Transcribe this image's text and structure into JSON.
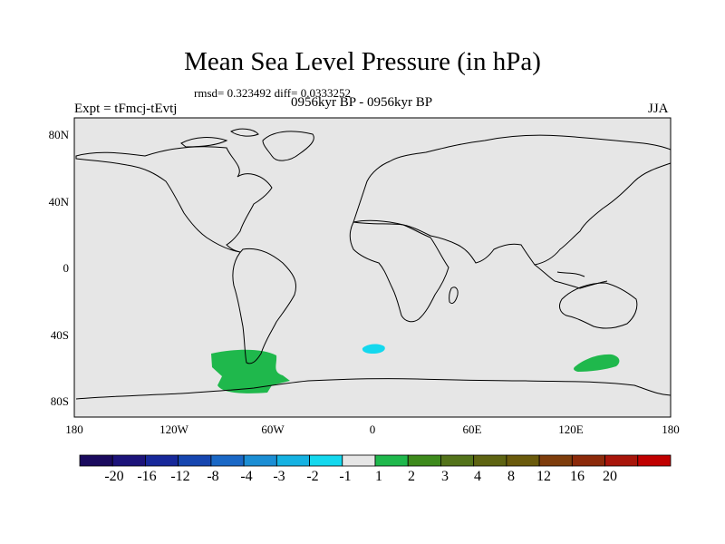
{
  "title": "Mean Sea Level Pressure (in hPa)",
  "stats": "rmsd= 0.323492 diff= 0.0333252",
  "period": "0956kyr BP - 0956kyr BP",
  "experiment": "Expt = tFmcj-tEvtj",
  "season": "JJA",
  "lat_labels": [
    "80N",
    "40N",
    "0",
    "40S",
    "80S"
  ],
  "lon_labels": [
    "180",
    "120W",
    "60W",
    "0",
    "60E",
    "120E",
    "180"
  ],
  "colorbar": {
    "colors": [
      "#1a0a5e",
      "#1c137a",
      "#17289a",
      "#1646b0",
      "#1a68c6",
      "#1b8ed4",
      "#15b2e2",
      "#14d8ee",
      "#e6e6e6",
      "#1fb84c",
      "#3d8a1c",
      "#53731a",
      "#5e6412",
      "#6a5a0c",
      "#7e3d0c",
      "#8c2a0a",
      "#a8150a",
      "#c00000"
    ],
    "labels": [
      "-20",
      "-16",
      "-12",
      "-8",
      "-4",
      "-3",
      "-2",
      "-1",
      "1",
      "2",
      "3",
      "4",
      "8",
      "12",
      "16",
      "20"
    ]
  },
  "map_colors": {
    "background": "#e6e6e6",
    "positive": "#1fb84c",
    "negative": "#14d8ee"
  }
}
